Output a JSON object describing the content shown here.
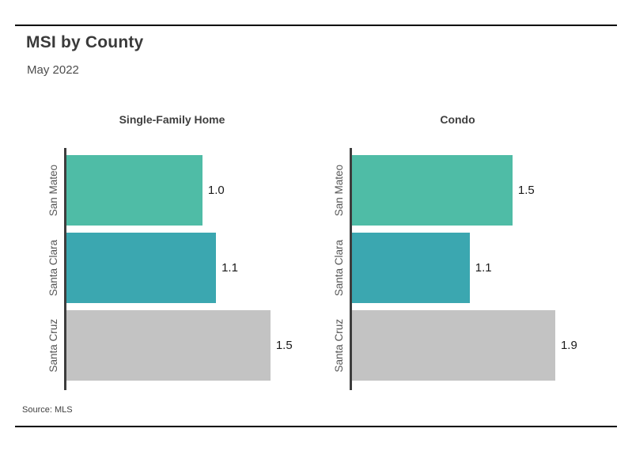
{
  "header": {
    "title": "MSI by County",
    "subtitle": "May 2022"
  },
  "footer": {
    "source": "Source: MLS"
  },
  "colors": {
    "accent_teal_green": "#4fbca6",
    "accent_teal_blue": "#3ba7b0",
    "neutral_gray": "#c3c3c3",
    "axis": "#3d3d3d",
    "rule": "#000000"
  },
  "chart_data": [
    {
      "type": "bar",
      "orientation": "horizontal",
      "title": "Single-Family Home",
      "categories": [
        "San Mateo",
        "Santa Clara",
        "Santa Cruz"
      ],
      "values": [
        1.0,
        1.1,
        1.5
      ],
      "value_labels": [
        "1.0",
        "1.1",
        "1.5"
      ],
      "bar_colors": [
        "#4fbca6",
        "#3ba7b0",
        "#c3c3c3"
      ],
      "xlim": [
        0,
        1.92
      ],
      "grid": false,
      "legend": false
    },
    {
      "type": "bar",
      "orientation": "horizontal",
      "title": "Condo",
      "categories": [
        "San Mateo",
        "Santa Clara",
        "Santa Cruz"
      ],
      "values": [
        1.5,
        1.1,
        1.9
      ],
      "value_labels": [
        "1.5",
        "1.1",
        "1.9"
      ],
      "bar_colors": [
        "#4fbca6",
        "#3ba7b0",
        "#c3c3c3"
      ],
      "xlim": [
        0,
        2.44
      ],
      "grid": false,
      "legend": false
    }
  ]
}
